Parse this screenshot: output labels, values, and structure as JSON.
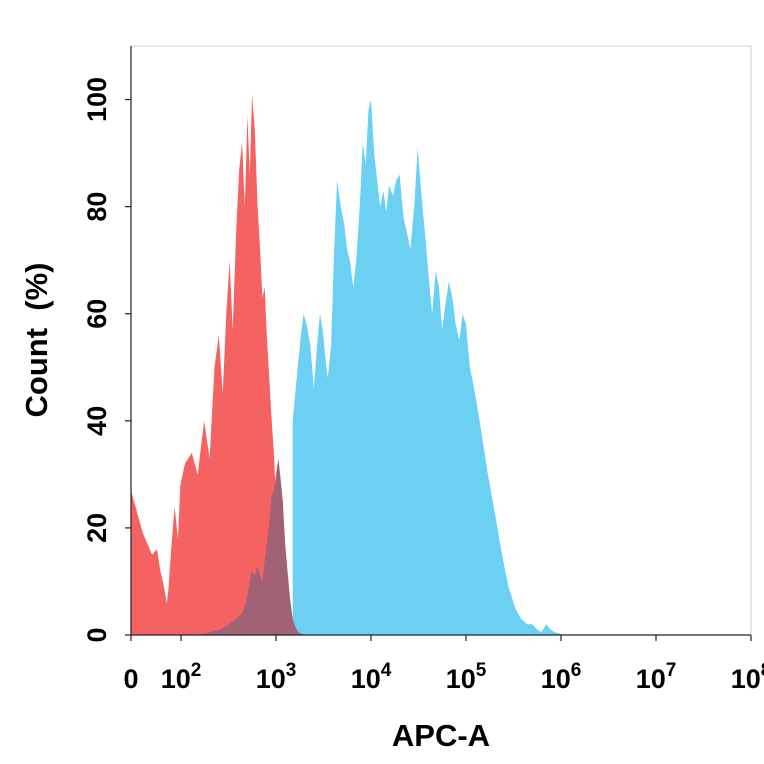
{
  "chart_data": {
    "type": "area",
    "title": "",
    "xlabel": "APC-A",
    "ylabel": "Count  (%)",
    "x_scale": "log",
    "xlim": [
      0,
      100000000
    ],
    "ylim": [
      0,
      110
    ],
    "grid": false,
    "legend": "none",
    "x_ticks": [
      {
        "value": 0,
        "base": "0",
        "exp": ""
      },
      {
        "value": 100,
        "base": "10",
        "exp": "2"
      },
      {
        "value": 1000,
        "base": "10",
        "exp": "3"
      },
      {
        "value": 10000,
        "base": "10",
        "exp": "4"
      },
      {
        "value": 100000,
        "base": "10",
        "exp": "5"
      },
      {
        "value": 1000000,
        "base": "10",
        "exp": "6"
      },
      {
        "value": 10000000,
        "base": "10",
        "exp": "7"
      },
      {
        "value": 100000000,
        "base": "10",
        "exp": "8"
      }
    ],
    "y_ticks": [
      {
        "value": 0,
        "label": "0"
      },
      {
        "value": 20,
        "label": "20"
      },
      {
        "value": 40,
        "label": "40"
      },
      {
        "value": 60,
        "label": "60"
      },
      {
        "value": 80,
        "label": "80"
      },
      {
        "value": 100,
        "label": "100"
      }
    ],
    "series": [
      {
        "color": "#f56262",
        "x": [
          0,
          2,
          6,
          10,
          14,
          18,
          22,
          26,
          30,
          40,
          55,
          75,
          95,
          110,
          130,
          150,
          175,
          200,
          225,
          250,
          275,
          300,
          325,
          350,
          380,
          410,
          440,
          470,
          500,
          530,
          560,
          600,
          640,
          680,
          720,
          760,
          800,
          850,
          900,
          950,
          1000,
          1060,
          1120,
          1180,
          1250,
          1320,
          1400,
          1500,
          1600,
          1700,
          1850,
          2000
        ],
        "values": [
          27,
          19,
          15,
          16,
          12,
          10,
          8,
          6,
          8,
          16,
          24,
          18,
          28,
          32,
          34,
          30,
          40,
          33,
          50,
          56,
          45,
          60,
          70,
          57,
          75,
          87,
          92,
          80,
          97,
          86,
          101,
          94,
          80,
          72,
          63,
          65,
          56,
          48,
          40,
          34,
          25,
          18,
          13,
          10,
          8,
          6,
          4,
          2,
          1,
          0.5,
          0.2,
          0
        ]
      },
      {
        "color": "#6cd0f3",
        "x": [
          1500,
          1650,
          1800,
          1950,
          2100,
          2300,
          2500,
          2700,
          2900,
          3100,
          3300,
          3500,
          3800,
          4100,
          4400,
          4800,
          5200,
          5600,
          6000,
          6500,
          7000,
          7600,
          8200,
          8800,
          9400,
          10000,
          10800,
          11600,
          12500,
          13500,
          14500,
          15500,
          17000,
          18500,
          20000,
          22000,
          24000,
          26000,
          28500,
          31000,
          34000,
          37000,
          40000,
          44000,
          48000,
          52000,
          56000,
          61000,
          66000,
          72000,
          78000,
          85000,
          92000,
          100000,
          110000,
          125000,
          145000,
          170000,
          200000,
          240000,
          280000,
          330000,
          380000,
          440000,
          500000,
          560000,
          620000,
          700000,
          780000,
          860000,
          950000,
          1050000
        ],
        "values": [
          40,
          48,
          55,
          60,
          58,
          54,
          46,
          54,
          60,
          57,
          52,
          48,
          54,
          72,
          85,
          80,
          77,
          72,
          70,
          65,
          70,
          80,
          92,
          88,
          98,
          100,
          90,
          85,
          80,
          83,
          79,
          84,
          82,
          85,
          86,
          78,
          75,
          72,
          80,
          91,
          82,
          75,
          68,
          60,
          68,
          65,
          57,
          62,
          66,
          63,
          58,
          55,
          60,
          58,
          50,
          45,
          38,
          30,
          23,
          15,
          9,
          5,
          3,
          2,
          2,
          1,
          0.5,
          2,
          1,
          0.5,
          0.3,
          0
        ]
      },
      {
        "color": "#a16273",
        "x": [
          150,
          200,
          260,
          320,
          380,
          440,
          480,
          520,
          560,
          600,
          640,
          680,
          720,
          760,
          800,
          850,
          900,
          950,
          1000,
          1060,
          1120,
          1180,
          1250,
          1320,
          1400,
          1500,
          1600,
          1700,
          1850,
          2000
        ],
        "values": [
          0,
          0.5,
          1,
          2,
          3,
          4,
          6,
          9,
          12,
          11,
          13,
          11,
          10,
          14,
          17,
          21,
          26,
          27,
          30,
          33,
          29,
          25,
          17,
          12,
          7,
          3,
          1.5,
          0.6,
          0.2,
          0
        ]
      }
    ]
  }
}
